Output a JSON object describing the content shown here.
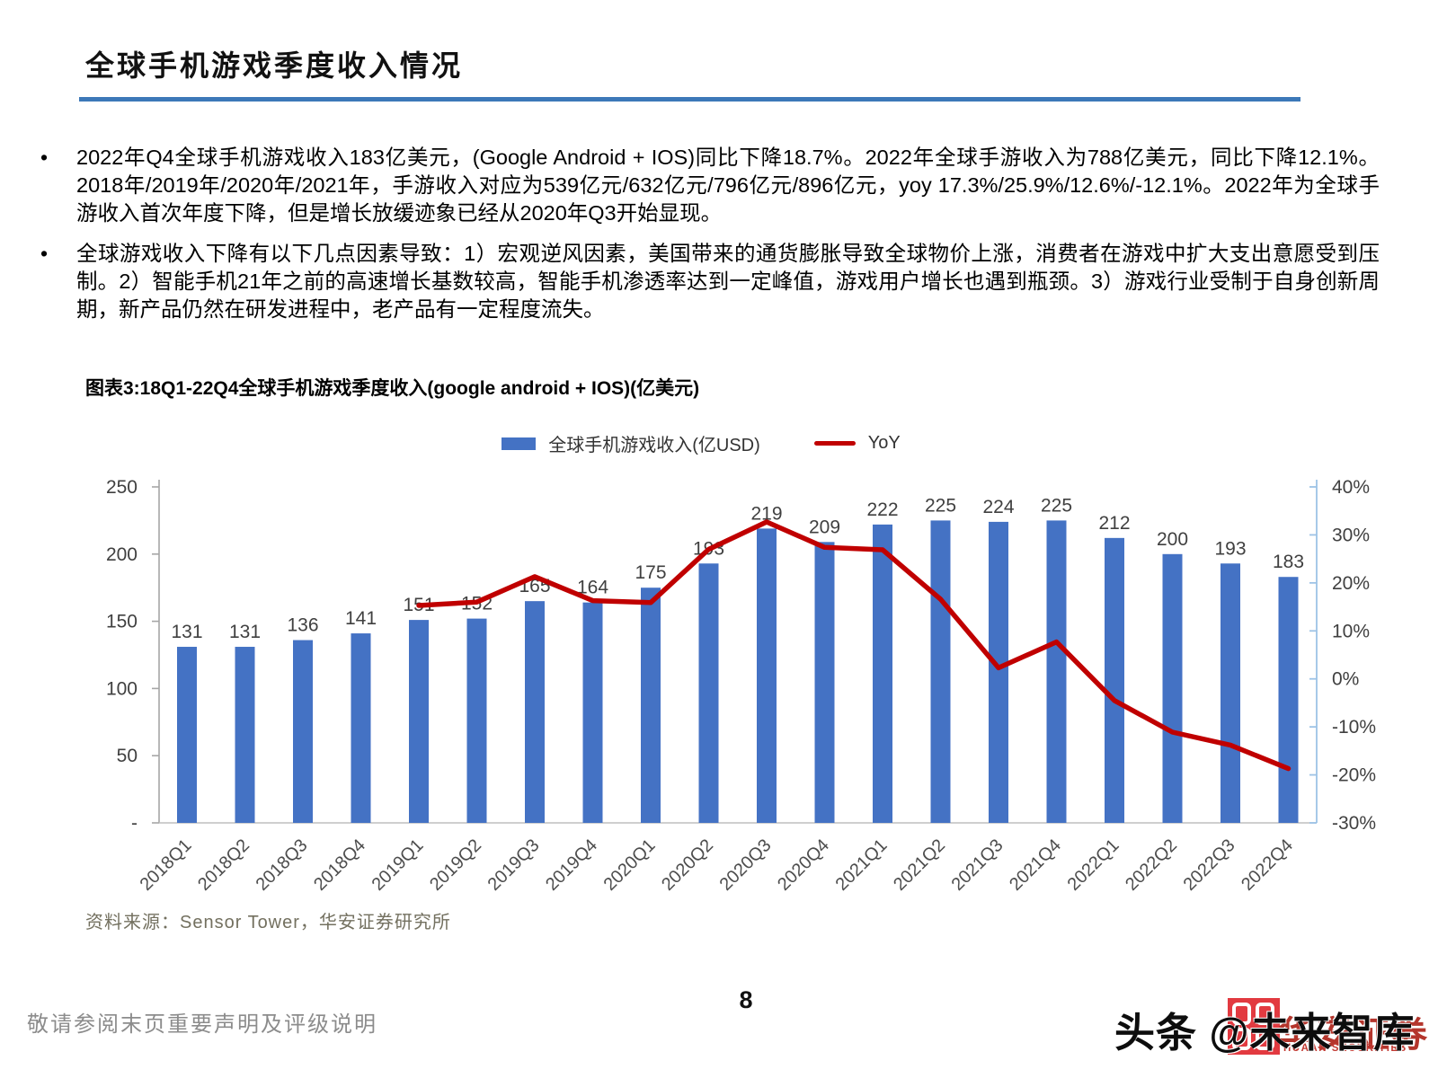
{
  "header": {
    "title": "全球手机游戏季度收入情况"
  },
  "bullet_char": "•",
  "bullets": [
    "2022年Q4全球手机游戏收入183亿美元，(Google Android + IOS)同比下降18.7%。2022年全球手游收入为788亿美元，同比下降12.1%。2018年/2019年/2020年/2021年，手游收入对应为539亿元/632亿元/796亿元/896亿元，yoy 17.3%/25.9%/12.6%/-12.1%。2022年为全球手游收入首次年度下降，但是增长放缓迹象已经从2020年Q3开始显现。",
    "全球游戏收入下降有以下几点因素导致：1）宏观逆风因素，美国带来的通货膨胀导致全球物价上涨，消费者在游戏中扩大支出意愿受到压制。2）智能手机21年之前的高速增长基数较高，智能手机渗透率达到一定峰值，游戏用户增长也遇到瓶颈。3）游戏行业受制于自身创新周期，新产品仍然在研发进程中，老产品有一定程度流失。"
  ],
  "figure": {
    "caption": "图表3:18Q1-22Q4全球手机游戏季度收入(google android + IOS)(亿美元)",
    "source": "资料来源：Sensor Tower，华安证券研究所"
  },
  "footer": {
    "note": "敬请参阅末页重要声明及评级说明",
    "page_number": "8"
  },
  "watermark": {
    "text": "头条 @未来智库",
    "logo_cn": "华安证券",
    "logo_en": "HUAAN SECURITIES"
  },
  "colors": {
    "bar_blue": "#4472C4",
    "line_red": "#C00000",
    "title_underline_blue": "#3C78B8",
    "left_axis_gray": "#A6A6A6",
    "bottom_axis_gray": "#BFBFBF",
    "right_axis_light_blue": "#9DC3E6",
    "label_gray": "#404040",
    "logo_red": "#E23A40"
  },
  "chart_data": {
    "type": "bar",
    "combo": "bar+line",
    "title": "图表3:18Q1-22Q4全球手机游戏季度收入(google android + IOS)(亿美元)",
    "categories": [
      "2018Q1",
      "2018Q2",
      "2018Q3",
      "2018Q4",
      "2019Q1",
      "2019Q2",
      "2019Q3",
      "2019Q4",
      "2020Q1",
      "2020Q2",
      "2020Q3",
      "2020Q4",
      "2021Q1",
      "2021Q2",
      "2021Q3",
      "2021Q4",
      "2022Q1",
      "2022Q2",
      "2022Q3",
      "2022Q4"
    ],
    "series": [
      {
        "name": "全球手机游戏收入(亿USD)",
        "type": "bar",
        "axis": "left",
        "color": "#4472C4",
        "values": [
          131,
          131,
          136,
          141,
          151,
          152,
          165,
          164,
          175,
          193,
          219,
          209,
          222,
          225,
          224,
          225,
          212,
          200,
          193,
          183
        ]
      },
      {
        "name": "YoY",
        "type": "line",
        "axis": "right",
        "color": "#C00000",
        "values_pct": [
          null,
          null,
          null,
          null,
          15.3,
          16.0,
          21.3,
          16.3,
          15.9,
          27.0,
          32.7,
          27.4,
          26.9,
          16.6,
          2.3,
          7.7,
          -4.5,
          -11.1,
          -13.8,
          -18.7
        ]
      }
    ],
    "left_axis": {
      "min": 0,
      "max": 250,
      "tick_values": [
        250,
        200,
        150,
        100,
        50,
        0
      ],
      "tick_labels": [
        "250",
        "200",
        "150",
        "100",
        "50",
        "-"
      ]
    },
    "right_axis": {
      "min": -30,
      "max": 40,
      "tick_values": [
        40,
        30,
        20,
        10,
        0,
        -10,
        -20,
        -30
      ],
      "tick_labels": [
        "40%",
        "30%",
        "20%",
        "10%",
        "0%",
        "-10%",
        "-20%",
        "-30%"
      ]
    },
    "grid": false,
    "data_labels": true,
    "legend_position": "top-center"
  }
}
